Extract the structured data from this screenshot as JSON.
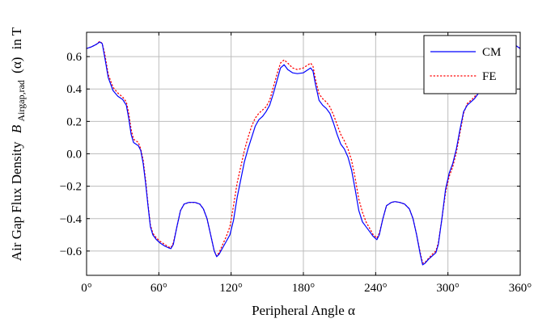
{
  "chart_data": {
    "type": "line",
    "title": "",
    "xlabel": "Peripheral Angle α",
    "ylabel": "Air Gap Flux Density B_Airgap,rad (α) in T",
    "ylabel_parts": {
      "prefix": "Air Gap Flux Density",
      "symbol": "B",
      "subscript": "Airgap,rad",
      "suffix_args": "(α)",
      "suffix_unit": "in T"
    },
    "xlim": [
      0,
      360
    ],
    "ylim": [
      -0.75,
      0.75
    ],
    "xticks": [
      0,
      60,
      120,
      180,
      240,
      300,
      360
    ],
    "xtick_labels": [
      "0°",
      "60°",
      "120°",
      "180°",
      "240°",
      "300°",
      "360°"
    ],
    "yticks": [
      -0.6,
      -0.4,
      -0.2,
      0.0,
      0.2,
      0.4,
      0.6
    ],
    "ytick_labels": [
      "−0.6",
      "−0.4",
      "−0.2",
      "0.0",
      "0.2",
      "0.4",
      "0.6"
    ],
    "grid": true,
    "legend_position": "top-right",
    "series": [
      {
        "name": "CM",
        "color": "#0000ff",
        "style": "solid",
        "points": [
          [
            0,
            0.65
          ],
          [
            4,
            0.66
          ],
          [
            8,
            0.675
          ],
          [
            11,
            0.69
          ],
          [
            13,
            0.68
          ],
          [
            15,
            0.6
          ],
          [
            18,
            0.47
          ],
          [
            22,
            0.39
          ],
          [
            26,
            0.355
          ],
          [
            30,
            0.335
          ],
          [
            33,
            0.3
          ],
          [
            35,
            0.22
          ],
          [
            37,
            0.12
          ],
          [
            39,
            0.07
          ],
          [
            43,
            0.05
          ],
          [
            45,
            0.02
          ],
          [
            47,
            -0.06
          ],
          [
            49,
            -0.18
          ],
          [
            51,
            -0.32
          ],
          [
            53,
            -0.45
          ],
          [
            55,
            -0.5
          ],
          [
            58,
            -0.53
          ],
          [
            61,
            -0.55
          ],
          [
            65,
            -0.57
          ],
          [
            68,
            -0.58
          ],
          [
            70,
            -0.585
          ],
          [
            72,
            -0.56
          ],
          [
            75,
            -0.45
          ],
          [
            78,
            -0.35
          ],
          [
            81,
            -0.31
          ],
          [
            85,
            -0.3
          ],
          [
            90,
            -0.3
          ],
          [
            94,
            -0.31
          ],
          [
            97,
            -0.34
          ],
          [
            100,
            -0.4
          ],
          [
            103,
            -0.5
          ],
          [
            106,
            -0.6
          ],
          [
            108,
            -0.635
          ],
          [
            110,
            -0.62
          ],
          [
            113,
            -0.58
          ],
          [
            116,
            -0.54
          ],
          [
            119,
            -0.5
          ],
          [
            122,
            -0.41
          ],
          [
            125,
            -0.27
          ],
          [
            128,
            -0.16
          ],
          [
            131,
            -0.05
          ],
          [
            134,
            0.03
          ],
          [
            137,
            0.1
          ],
          [
            140,
            0.17
          ],
          [
            143,
            0.21
          ],
          [
            146,
            0.23
          ],
          [
            149,
            0.26
          ],
          [
            152,
            0.3
          ],
          [
            155,
            0.37
          ],
          [
            158,
            0.45
          ],
          [
            161,
            0.53
          ],
          [
            164,
            0.55
          ],
          [
            167,
            0.52
          ],
          [
            171,
            0.5
          ],
          [
            175,
            0.495
          ],
          [
            180,
            0.5
          ],
          [
            184,
            0.52
          ],
          [
            186,
            0.53
          ],
          [
            188,
            0.51
          ],
          [
            190,
            0.43
          ],
          [
            193,
            0.33
          ],
          [
            196,
            0.3
          ],
          [
            199,
            0.28
          ],
          [
            202,
            0.25
          ],
          [
            205,
            0.19
          ],
          [
            208,
            0.12
          ],
          [
            211,
            0.06
          ],
          [
            214,
            0.03
          ],
          [
            217,
            -0.02
          ],
          [
            220,
            -0.1
          ],
          [
            223,
            -0.22
          ],
          [
            226,
            -0.35
          ],
          [
            229,
            -0.42
          ],
          [
            232,
            -0.45
          ],
          [
            235,
            -0.48
          ],
          [
            238,
            -0.51
          ],
          [
            241,
            -0.53
          ],
          [
            243,
            -0.5
          ],
          [
            246,
            -0.4
          ],
          [
            249,
            -0.32
          ],
          [
            253,
            -0.3
          ],
          [
            256,
            -0.295
          ],
          [
            260,
            -0.3
          ],
          [
            264,
            -0.31
          ],
          [
            268,
            -0.34
          ],
          [
            271,
            -0.4
          ],
          [
            274,
            -0.5
          ],
          [
            277,
            -0.62
          ],
          [
            279,
            -0.685
          ],
          [
            281,
            -0.675
          ],
          [
            284,
            -0.65
          ],
          [
            287,
            -0.63
          ],
          [
            290,
            -0.61
          ],
          [
            292,
            -0.56
          ],
          [
            295,
            -0.4
          ],
          [
            298,
            -0.22
          ],
          [
            301,
            -0.12
          ],
          [
            304,
            -0.06
          ],
          [
            307,
            0.03
          ],
          [
            310,
            0.15
          ],
          [
            313,
            0.26
          ],
          [
            316,
            0.3
          ],
          [
            319,
            0.32
          ],
          [
            322,
            0.34
          ],
          [
            325,
            0.37
          ],
          [
            328,
            0.43
          ],
          [
            331,
            0.52
          ],
          [
            334,
            0.58
          ],
          [
            337,
            0.61
          ],
          [
            340,
            0.63
          ],
          [
            344,
            0.64
          ],
          [
            348,
            0.66
          ],
          [
            352,
            0.68
          ],
          [
            356,
            0.67
          ],
          [
            360,
            0.65
          ]
        ]
      },
      {
        "name": "FE",
        "color": "#ff0000",
        "style": "dotted",
        "points": [
          [
            0,
            0.65
          ],
          [
            4,
            0.66
          ],
          [
            8,
            0.675
          ],
          [
            11,
            0.695
          ],
          [
            13,
            0.68
          ],
          [
            15,
            0.62
          ],
          [
            18,
            0.49
          ],
          [
            22,
            0.41
          ],
          [
            26,
            0.375
          ],
          [
            30,
            0.35
          ],
          [
            33,
            0.32
          ],
          [
            35,
            0.25
          ],
          [
            37,
            0.15
          ],
          [
            39,
            0.09
          ],
          [
            43,
            0.07
          ],
          [
            45,
            0.03
          ],
          [
            47,
            -0.04
          ],
          [
            49,
            -0.16
          ],
          [
            51,
            -0.31
          ],
          [
            53,
            -0.44
          ],
          [
            55,
            -0.49
          ],
          [
            58,
            -0.52
          ],
          [
            61,
            -0.54
          ],
          [
            65,
            -0.56
          ],
          [
            68,
            -0.575
          ],
          [
            70,
            -0.58
          ],
          [
            72,
            -0.55
          ],
          [
            75,
            -0.45
          ],
          [
            78,
            -0.35
          ],
          [
            81,
            -0.31
          ],
          [
            85,
            -0.3
          ],
          [
            90,
            -0.3
          ],
          [
            94,
            -0.31
          ],
          [
            97,
            -0.34
          ],
          [
            100,
            -0.4
          ],
          [
            103,
            -0.5
          ],
          [
            106,
            -0.6
          ],
          [
            108,
            -0.63
          ],
          [
            110,
            -0.61
          ],
          [
            113,
            -0.56
          ],
          [
            116,
            -0.51
          ],
          [
            119,
            -0.45
          ],
          [
            122,
            -0.32
          ],
          [
            125,
            -0.18
          ],
          [
            128,
            -0.08
          ],
          [
            131,
            0.02
          ],
          [
            134,
            0.1
          ],
          [
            137,
            0.17
          ],
          [
            140,
            0.22
          ],
          [
            143,
            0.25
          ],
          [
            146,
            0.27
          ],
          [
            149,
            0.29
          ],
          [
            152,
            0.33
          ],
          [
            155,
            0.41
          ],
          [
            158,
            0.49
          ],
          [
            161,
            0.56
          ],
          [
            164,
            0.58
          ],
          [
            167,
            0.56
          ],
          [
            171,
            0.53
          ],
          [
            175,
            0.52
          ],
          [
            180,
            0.53
          ],
          [
            184,
            0.55
          ],
          [
            186,
            0.56
          ],
          [
            188,
            0.54
          ],
          [
            190,
            0.46
          ],
          [
            193,
            0.37
          ],
          [
            196,
            0.34
          ],
          [
            199,
            0.32
          ],
          [
            202,
            0.29
          ],
          [
            205,
            0.24
          ],
          [
            208,
            0.18
          ],
          [
            211,
            0.12
          ],
          [
            214,
            0.08
          ],
          [
            217,
            0.03
          ],
          [
            220,
            -0.04
          ],
          [
            223,
            -0.15
          ],
          [
            226,
            -0.28
          ],
          [
            229,
            -0.36
          ],
          [
            232,
            -0.42
          ],
          [
            235,
            -0.46
          ],
          [
            238,
            -0.5
          ],
          [
            241,
            -0.52
          ],
          [
            243,
            -0.49
          ],
          [
            246,
            -0.4
          ],
          [
            249,
            -0.32
          ],
          [
            253,
            -0.3
          ],
          [
            256,
            -0.295
          ],
          [
            260,
            -0.3
          ],
          [
            264,
            -0.31
          ],
          [
            268,
            -0.34
          ],
          [
            271,
            -0.4
          ],
          [
            274,
            -0.5
          ],
          [
            277,
            -0.61
          ],
          [
            279,
            -0.675
          ],
          [
            281,
            -0.67
          ],
          [
            284,
            -0.645
          ],
          [
            287,
            -0.62
          ],
          [
            290,
            -0.6
          ],
          [
            292,
            -0.55
          ],
          [
            295,
            -0.4
          ],
          [
            298,
            -0.24
          ],
          [
            301,
            -0.14
          ],
          [
            304,
            -0.08
          ],
          [
            307,
            0.01
          ],
          [
            310,
            0.13
          ],
          [
            313,
            0.25
          ],
          [
            316,
            0.31
          ],
          [
            319,
            0.33
          ],
          [
            322,
            0.35
          ],
          [
            325,
            0.39
          ],
          [
            328,
            0.45
          ],
          [
            331,
            0.54
          ],
          [
            334,
            0.6
          ],
          [
            337,
            0.63
          ],
          [
            340,
            0.64
          ],
          [
            344,
            0.645
          ],
          [
            348,
            0.66
          ],
          [
            352,
            0.68
          ],
          [
            356,
            0.67
          ],
          [
            360,
            0.65
          ]
        ]
      }
    ]
  }
}
